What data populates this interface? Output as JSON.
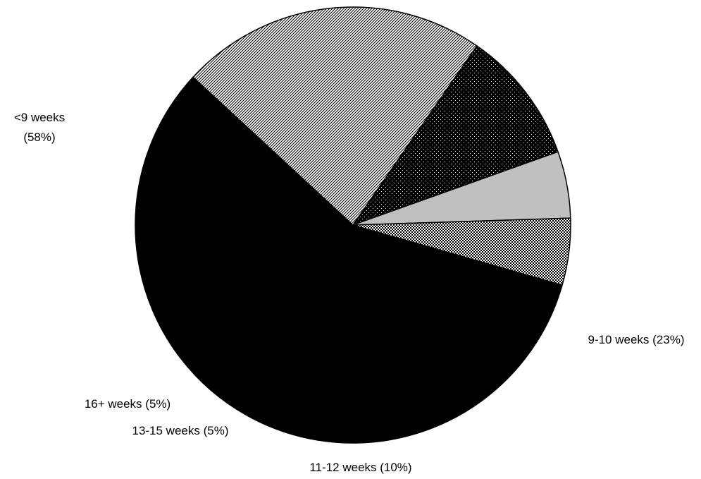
{
  "chart_data": {
    "type": "pie",
    "title": "",
    "slices": [
      {
        "label": "<9 weeks",
        "percent_label": "(58%)",
        "value": 58,
        "fill": "solid-black",
        "label_lines": [
          "<9 weeks",
          "(58%)"
        ]
      },
      {
        "label": "9-10 weeks",
        "percent_label": "(23%)",
        "value": 23,
        "fill": "diagonal-hatch",
        "label_lines": [
          "9-10 weeks (23%)"
        ]
      },
      {
        "label": "11-12 weeks",
        "percent_label": "(10%)",
        "value": 10,
        "fill": "dotted-black",
        "label_lines": [
          "11-12 weeks (10%)"
        ]
      },
      {
        "label": "13-15 weeks",
        "percent_label": "(5%)",
        "value": 5,
        "fill": "solid-gray",
        "label_lines": [
          "13-15 weeks (5%)"
        ]
      },
      {
        "label": "16+ weeks",
        "percent_label": "(5%)",
        "value": 5,
        "fill": "checkerboard",
        "label_lines": [
          "16+ weeks (5%)"
        ]
      }
    ],
    "start_angle_deg": 106,
    "direction": "clockwise",
    "legend": "none",
    "colors": {
      "solid-black": "#000000",
      "solid-gray": "#c0c0c0",
      "outline": "#000000",
      "background": "#ffffff"
    }
  }
}
